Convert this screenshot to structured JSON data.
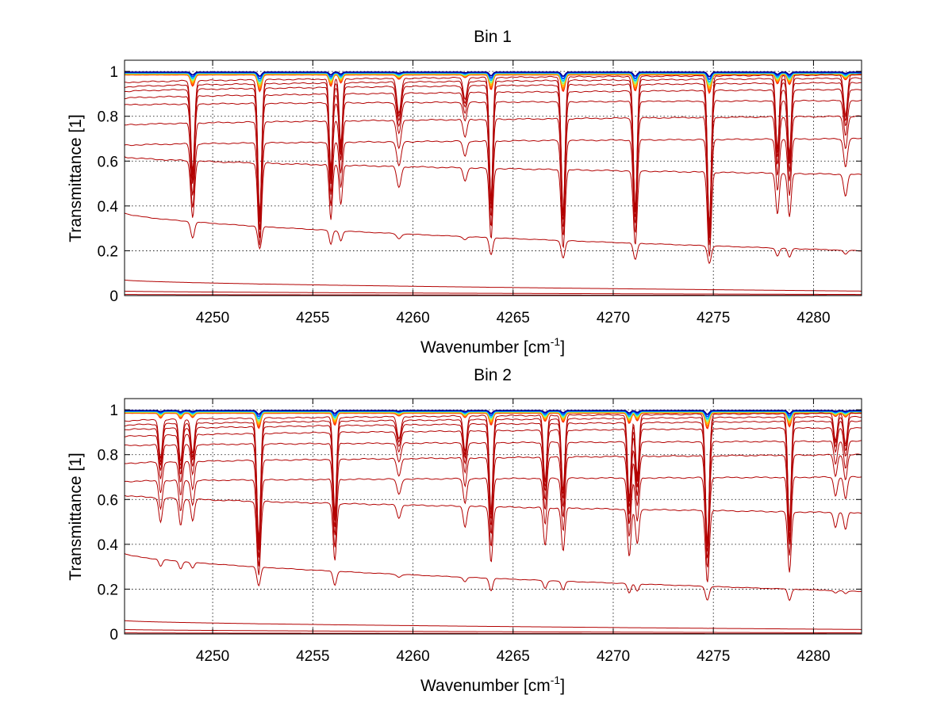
{
  "chart_data": [
    {
      "type": "line",
      "title": "Bin 1",
      "xlabel": "Wavenumber [cm",
      "xlabel_sup": "-1",
      "xlabel_close": "]",
      "ylabel": "Transmittance [1]",
      "xlim": [
        4245.6,
        4282.4
      ],
      "ylim": [
        0,
        1.05
      ],
      "grid": true,
      "xticks": [
        4250,
        4255,
        4260,
        4265,
        4270,
        4275,
        4280
      ],
      "xtick_labels": [
        "4250",
        "4255",
        "4260",
        "4265",
        "4270",
        "4275",
        "4280"
      ],
      "yticks": [
        0,
        0.2,
        0.4,
        0.6,
        0.8,
        1
      ],
      "ytick_labels": [
        "0",
        "0.2",
        "0.4",
        "0.6",
        "0.8",
        "1"
      ],
      "series_color": "#b20000",
      "top_band_colors": [
        "#ff2a00",
        "#ff7a00",
        "#ffc000",
        "#7fff7f",
        "#00bfff",
        "#0040ff",
        "#00008f"
      ],
      "absorption_lines": [
        {
          "x": 4249.0,
          "depth": 0.42,
          "width": 0.13
        },
        {
          "x": 4252.35,
          "depth": 0.62,
          "width": 0.13
        },
        {
          "x": 4255.9,
          "depth": 0.42,
          "width": 0.11
        },
        {
          "x": 4256.4,
          "depth": 0.3,
          "width": 0.11
        },
        {
          "x": 4259.3,
          "depth": 0.16,
          "width": 0.15
        },
        {
          "x": 4262.6,
          "depth": 0.1,
          "width": 0.13
        },
        {
          "x": 4263.9,
          "depth": 0.56,
          "width": 0.12
        },
        {
          "x": 4267.5,
          "depth": 0.62,
          "width": 0.13
        },
        {
          "x": 4271.1,
          "depth": 0.6,
          "width": 0.13
        },
        {
          "x": 4274.8,
          "depth": 0.68,
          "width": 0.13
        },
        {
          "x": 4278.2,
          "depth": 0.33,
          "width": 0.12
        },
        {
          "x": 4278.8,
          "depth": 0.36,
          "width": 0.12
        },
        {
          "x": 4281.6,
          "depth": 0.18,
          "width": 0.13
        }
      ],
      "level_curves": [
        {
          "left": 0.95,
          "right": 0.985,
          "start_dip": 0.03
        },
        {
          "left": 0.93,
          "right": 0.97,
          "start_dip": 0.04
        },
        {
          "left": 0.91,
          "right": 0.95,
          "start_dip": 0.05
        },
        {
          "left": 0.88,
          "right": 0.92,
          "start_dip": 0.06
        },
        {
          "left": 0.85,
          "right": 0.87,
          "start_dip": 0.07
        },
        {
          "left": 0.76,
          "right": 0.8,
          "start_dip": 0.08
        },
        {
          "left": 0.67,
          "right": 0.7,
          "start_dip": 0.09
        },
        {
          "left": 0.62,
          "right": 0.54,
          "start_dip": 0.09
        },
        {
          "left": 0.37,
          "right": 0.2,
          "start_dip": 0.17
        },
        {
          "left": 0.07,
          "right": 0.02,
          "start_dip": 0.04
        },
        {
          "left": 0.02,
          "right": 0.005,
          "start_dip": 0.01
        },
        {
          "left": 0.005,
          "right": 0.001,
          "start_dip": 0.0
        }
      ]
    },
    {
      "type": "line",
      "title": "Bin 2",
      "xlabel": "Wavenumber [cm",
      "xlabel_sup": "-1",
      "xlabel_close": "]",
      "ylabel": "Transmittance [1]",
      "xlim": [
        4245.6,
        4282.4
      ],
      "ylim": [
        0,
        1.05
      ],
      "grid": true,
      "xticks": [
        4250,
        4255,
        4260,
        4265,
        4270,
        4275,
        4280
      ],
      "xtick_labels": [
        "4250",
        "4255",
        "4260",
        "4265",
        "4270",
        "4275",
        "4280"
      ],
      "yticks": [
        0,
        0.2,
        0.4,
        0.6,
        0.8,
        1
      ],
      "ytick_labels": [
        "0",
        "0.2",
        "0.4",
        "0.6",
        "0.8",
        "1"
      ],
      "series_color": "#b20000",
      "top_band_colors": [
        "#ff2a00",
        "#ff7a00",
        "#ffc000",
        "#7fff7f",
        "#00bfff",
        "#0040ff",
        "#00008f"
      ],
      "absorption_lines": [
        {
          "x": 4247.4,
          "depth": 0.18,
          "width": 0.12
        },
        {
          "x": 4248.4,
          "depth": 0.2,
          "width": 0.12
        },
        {
          "x": 4249.0,
          "depth": 0.16,
          "width": 0.12
        },
        {
          "x": 4252.3,
          "depth": 0.56,
          "width": 0.13
        },
        {
          "x": 4256.1,
          "depth": 0.44,
          "width": 0.12
        },
        {
          "x": 4259.3,
          "depth": 0.1,
          "width": 0.14
        },
        {
          "x": 4262.6,
          "depth": 0.16,
          "width": 0.12
        },
        {
          "x": 4263.9,
          "depth": 0.44,
          "width": 0.12
        },
        {
          "x": 4266.6,
          "depth": 0.3,
          "width": 0.12
        },
        {
          "x": 4267.5,
          "depth": 0.34,
          "width": 0.12
        },
        {
          "x": 4270.8,
          "depth": 0.38,
          "width": 0.12
        },
        {
          "x": 4271.2,
          "depth": 0.28,
          "width": 0.12
        },
        {
          "x": 4274.7,
          "depth": 0.58,
          "width": 0.13
        },
        {
          "x": 4278.8,
          "depth": 0.5,
          "width": 0.12
        },
        {
          "x": 4281.1,
          "depth": 0.12,
          "width": 0.12
        },
        {
          "x": 4281.6,
          "depth": 0.14,
          "width": 0.12
        }
      ],
      "level_curves": [
        {
          "left": 0.95,
          "right": 0.985,
          "start_dip": 0.03
        },
        {
          "left": 0.93,
          "right": 0.97,
          "start_dip": 0.04
        },
        {
          "left": 0.91,
          "right": 0.95,
          "start_dip": 0.05
        },
        {
          "left": 0.88,
          "right": 0.92,
          "start_dip": 0.06
        },
        {
          "left": 0.84,
          "right": 0.86,
          "start_dip": 0.07
        },
        {
          "left": 0.76,
          "right": 0.8,
          "start_dip": 0.08
        },
        {
          "left": 0.68,
          "right": 0.7,
          "start_dip": 0.09
        },
        {
          "left": 0.62,
          "right": 0.54,
          "start_dip": 0.09
        },
        {
          "left": 0.36,
          "right": 0.19,
          "start_dip": 0.16
        },
        {
          "left": 0.06,
          "right": 0.02,
          "start_dip": 0.04
        },
        {
          "left": 0.02,
          "right": 0.005,
          "start_dip": 0.01
        },
        {
          "left": 0.005,
          "right": 0.001,
          "start_dip": 0.0
        }
      ]
    }
  ]
}
